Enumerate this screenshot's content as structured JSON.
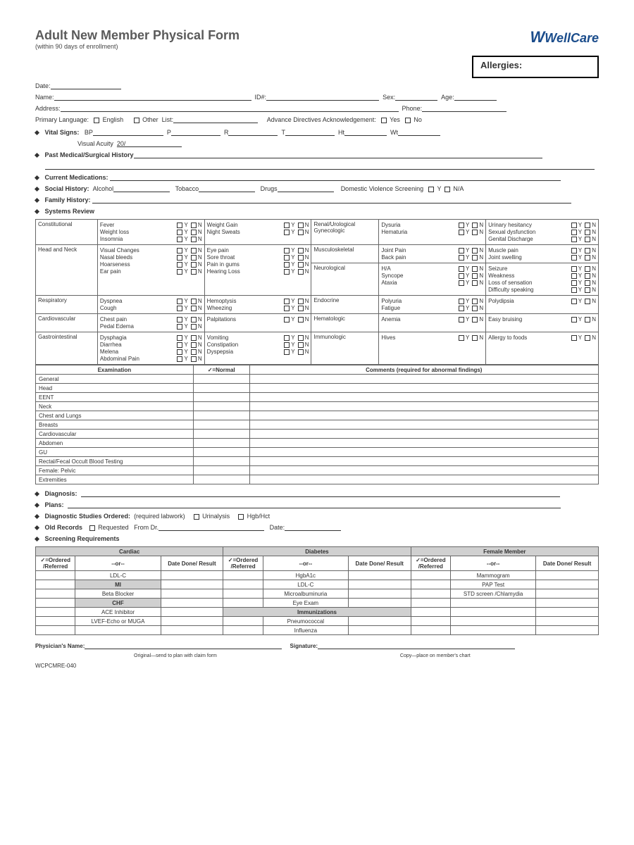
{
  "header": {
    "title": "Adult New Member Physical Form",
    "subtitle": "(within 90 days of enrollment)",
    "logo": "WellCare",
    "allergies_label": "Allergies:"
  },
  "demographics": {
    "date": "Date:",
    "name": "Name:",
    "id": "ID#:",
    "sex": "Sex:",
    "age": "Age:",
    "address": "Address:",
    "phone": "Phone:",
    "primary_language": "Primary Language:",
    "english": "English",
    "other": "Other",
    "list": "List:",
    "advance_directives": "Advance Directives Acknowledgement:",
    "yes": "Yes",
    "no": "No"
  },
  "vitals": {
    "label": "Vital Signs:",
    "bp": "BP",
    "p": "P",
    "r": "R",
    "t": "T",
    "ht": "Ht",
    "wt": "Wt",
    "visual_acuity": "Visual Acuity",
    "visual_acuity_val": "20/"
  },
  "history": {
    "past_medical": "Past Medical/Surgical History",
    "current_meds": "Current Medications:",
    "social": "Social History:",
    "alcohol": "Alcohol",
    "tobacco": "Tobacco",
    "drugs": "Drugs",
    "dvs": "Domestic Violence Screening",
    "y": "Y",
    "na": "N/A",
    "family": "Family History:",
    "systems_review": "Systems Review"
  },
  "systems": {
    "constitutional": {
      "label": "Constitutional",
      "left": [
        "Fever",
        "Weight loss",
        "Insomnia"
      ],
      "right": [
        "Weight Gain",
        "Night Sweats"
      ]
    },
    "head_neck": {
      "label": "Head and Neck",
      "left": [
        "Visual Changes",
        "Nasal bleeds",
        "Hoarseness",
        "Ear pain"
      ],
      "right": [
        "Eye pain",
        "Sore throat",
        "Pain in gums",
        "Hearing Loss"
      ]
    },
    "respiratory": {
      "label": "Respiratory",
      "left": [
        "Dyspnea",
        "Cough"
      ],
      "right": [
        "Hemoptysis",
        "Wheezing"
      ]
    },
    "cardiovascular": {
      "label": "Cardiovascular",
      "left": [
        "Chest pain",
        "Pedal Edema"
      ],
      "right": [
        "Palpitations"
      ]
    },
    "gi": {
      "label": "Gastrointestinal",
      "left": [
        "Dysphagia",
        "Diarrhea",
        "Melena",
        "Abdominal Pain"
      ],
      "right": [
        "Vomiting",
        "Constipation",
        "Dyspepsia"
      ]
    },
    "renal": {
      "label": "Renal/Urological Gynecologic",
      "left": [
        "Dysuria",
        "Hematuria"
      ],
      "right": [
        "Urinary hesitancy",
        "Sexual dysfunction",
        "Genital Discharge"
      ]
    },
    "msk": {
      "label": "Musculoskeletal",
      "left": [
        "Joint Pain",
        "Back pain"
      ],
      "right": [
        "Muscle pain",
        "Joint swelling"
      ]
    },
    "neuro": {
      "label": "Neurological",
      "left": [
        "H/A",
        "Syncope",
        "Ataxia"
      ],
      "right": [
        "Seizure",
        "Weakness",
        "Loss of sensation",
        "Difficulty speaking"
      ]
    },
    "endocrine": {
      "label": "Endocrine",
      "left": [
        "Polyuria",
        "Fatigue"
      ],
      "right": [
        "Polydipsia"
      ]
    },
    "hematologic": {
      "label": "Hematologic",
      "left": [
        "Anemia"
      ],
      "right": [
        "Easy bruising"
      ]
    },
    "immunologic": {
      "label": "Immunologic",
      "left": [
        "Hives"
      ],
      "right": [
        "Allergy to foods"
      ]
    }
  },
  "exam": {
    "header_exam": "Examination",
    "header_normal": "✓=Normal",
    "header_comments": "Comments (required for abnormal findings)",
    "rows": [
      "General",
      "Head",
      "EENT",
      "Neck",
      "Chest and Lungs",
      "Breasts",
      "Cardiovascular",
      "Abdomen",
      "GU",
      "Rectal/Fecal Occult Blood Testing",
      "Female: Pelvic",
      "Extremities"
    ]
  },
  "plans": {
    "diagnosis": "Diagnosis:",
    "plans": "Plans:",
    "diag_studies": "Diagnostic Studies Ordered:",
    "required_labwork": "(required labwork)",
    "urinalysis": "Urinalysis",
    "hgbhct": "Hgb/Hct",
    "old_records": "Old Records",
    "requested": "Requested",
    "from_dr": "From Dr.",
    "date": "Date:",
    "screening_req": "Screening Requirements"
  },
  "screening": {
    "ordered": "✓=Ordered /Referred",
    "or": "--or--",
    "date_done": "Date Done/ Result",
    "cardiac": {
      "title": "Cardiac",
      "rows": [
        "LDL-C",
        "MI",
        "Beta Blocker",
        "CHF",
        "ACE Inhibitor",
        "LVEF-Echo or MUGA"
      ],
      "grey": [
        false,
        true,
        false,
        true,
        false,
        false
      ]
    },
    "diabetes": {
      "title": "Diabetes",
      "rows": [
        "HgbA1c",
        "LDL-C",
        "Microalbuminuria",
        "Eye Exam",
        "Immunizations",
        "Pneumococcal",
        "Influenza"
      ],
      "grey": [
        false,
        false,
        false,
        false,
        true,
        false,
        false
      ]
    },
    "female": {
      "title": "Female Member",
      "rows": [
        "Mammogram",
        "PAP Test",
        "STD screen /Chlamydia",
        "",
        "",
        "",
        ""
      ],
      "grey": [
        false,
        false,
        false,
        false,
        false,
        false,
        false
      ]
    }
  },
  "footer": {
    "physician_name": "Physician's Name:",
    "signature": "Signature:",
    "original": "Original—send to plan with claim form",
    "copy": "Copy—place on member's chart",
    "form_id": "WCPCMRE-040"
  },
  "yn": {
    "y": "Y",
    "n": "N"
  }
}
